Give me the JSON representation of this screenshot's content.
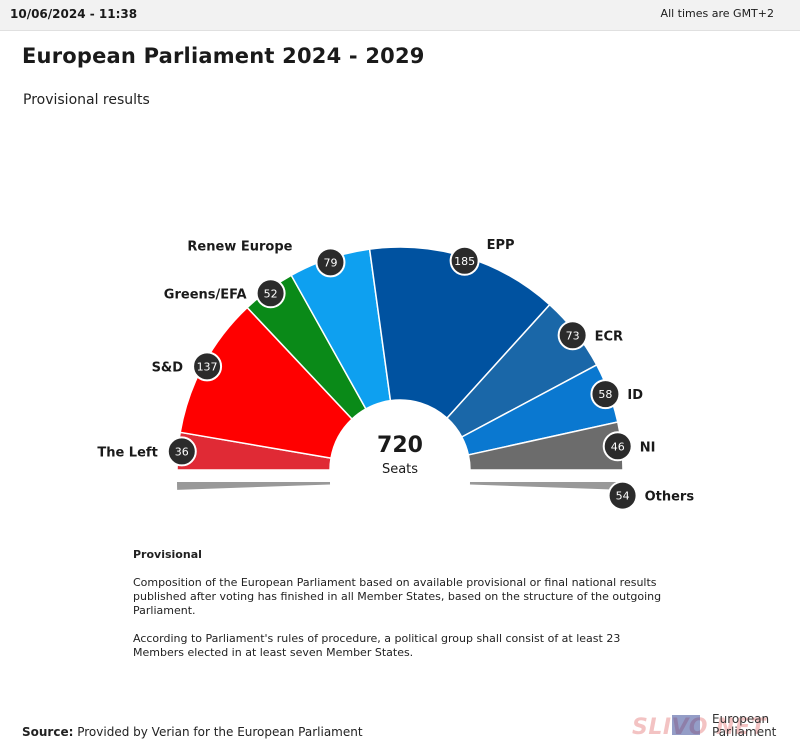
{
  "header": {
    "timestamp": "10/06/2024 - 11:38",
    "timezone": "All times are GMT+2"
  },
  "title": "European Parliament 2024 - 2029",
  "subtitle": "Provisional results",
  "chart_data": {
    "type": "pie",
    "variant": "parliament-semicircle",
    "total": {
      "value": "720",
      "label": "Seats"
    },
    "categories": [
      "The Left",
      "S&D",
      "Greens/EFA",
      "Renew Europe",
      "EPP",
      "ECR",
      "ID",
      "NI",
      "Others"
    ],
    "values": [
      36,
      137,
      52,
      79,
      185,
      73,
      58,
      46,
      54
    ],
    "colors": [
      "#e02a35",
      "#ff0000",
      "#0a8a18",
      "#0ea0f0",
      "#0052a0",
      "#1a67a8",
      "#0a78d0",
      "#6c6c6c",
      "#999999"
    ],
    "detached": [
      "Others"
    ]
  },
  "notes": {
    "heading": "Provisional",
    "p1": "Composition of the European Parliament based on available provisional or final national results published after voting has finished in all Member States, based on the structure of the outgoing Parliament.",
    "p2": "According to Parliament's rules of procedure, a political group shall consist of at least 23 Members elected in at least seven Member States."
  },
  "source": {
    "label": "Source:",
    "text": "Provided by Verian for the European Parliament"
  },
  "branding": {
    "watermark": "SLIVO NET",
    "logo_text_1": "European",
    "logo_text_2": "Parliament",
    "flag_icon": "eu-flag-icon"
  }
}
